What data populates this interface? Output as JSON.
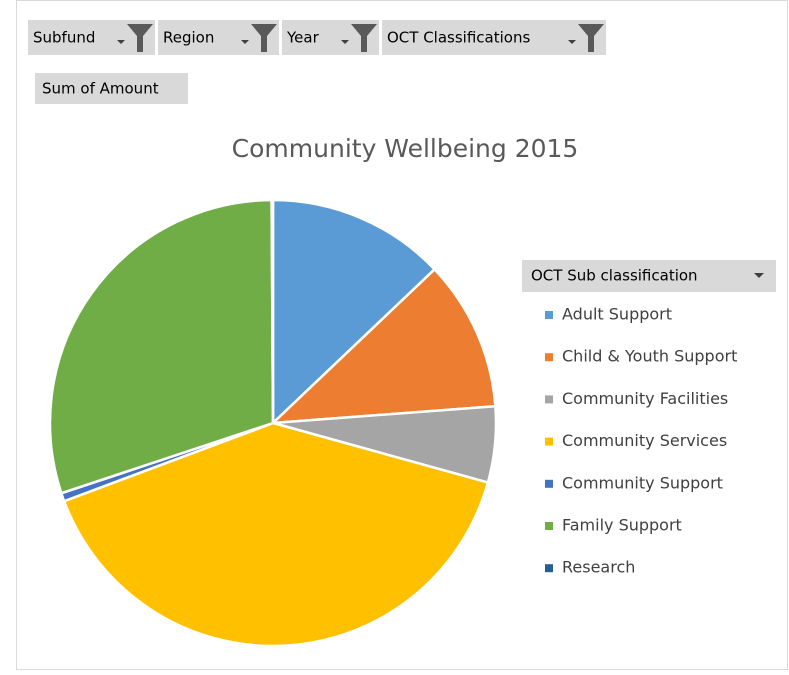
{
  "chart_data": {
    "type": "pie",
    "title": "Community Wellbeing 2015",
    "filter_fields": [
      "Subfund",
      "Region",
      "Year",
      "OCT Classifications"
    ],
    "value_field": "Sum of Amount",
    "legend_title": "OCT Sub classification",
    "categories": [
      "Adult Support",
      "Child & Youth Support",
      "Community Facilities",
      "Community Services",
      "Community Support",
      "Family Support",
      "Research"
    ],
    "values": [
      12.9,
      10.9,
      5.5,
      40.0,
      0.6,
      30.0,
      0.1
    ],
    "colors": [
      "#5b9bd5",
      "#ed7d31",
      "#a5a5a5",
      "#ffc000",
      "#4472c4",
      "#70ad47",
      "#255e91"
    ],
    "legend": "right"
  }
}
